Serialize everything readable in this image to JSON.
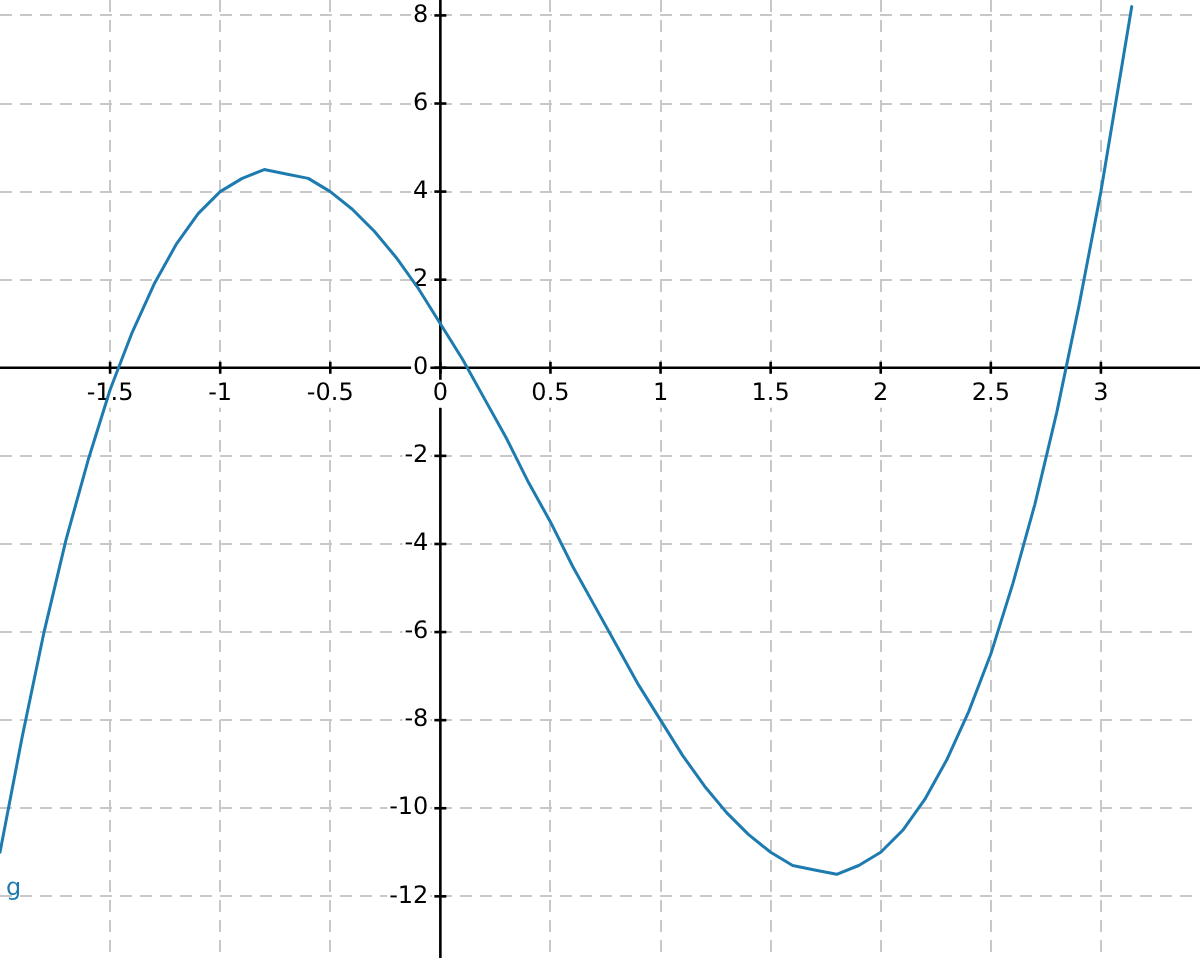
{
  "chart_data": {
    "type": "line",
    "x": [
      -2,
      -1.9,
      -1.8,
      -1.7,
      -1.6,
      -1.5,
      -1.4,
      -1.3,
      -1.2,
      -1.1,
      -1,
      -0.9,
      -0.8,
      -0.7,
      -0.6,
      -0.5,
      -0.4,
      -0.3,
      -0.2,
      -0.1,
      0,
      0.1,
      0.2,
      0.3,
      0.4,
      0.5,
      0.6,
      0.7,
      0.8,
      0.9,
      1,
      1.1,
      1.2,
      1.3,
      1.4,
      1.5,
      1.6,
      1.7,
      1.8,
      1.9,
      2,
      2.1,
      2.2,
      2.3,
      2.4,
      2.5,
      2.6,
      2.7,
      2.8,
      2.9,
      3,
      3.1,
      3.14
    ],
    "series": [
      {
        "name": "g",
        "color": "#1e7bb0",
        "values": [
          -11.0,
          -8.4,
          -6.0,
          -3.9,
          -2.1,
          -0.5,
          0.8,
          1.9,
          2.8,
          3.5,
          4.0,
          4.3,
          4.5,
          4.4,
          4.3,
          4.0,
          3.6,
          3.1,
          2.5,
          1.8,
          1.0,
          0.2,
          -0.7,
          -1.6,
          -2.6,
          -3.5,
          -4.5,
          -5.4,
          -6.3,
          -7.2,
          -8.0,
          -8.8,
          -9.5,
          -10.1,
          -10.6,
          -11.0,
          -11.3,
          -11.4,
          -11.5,
          -11.3,
          -11.0,
          -10.5,
          -9.8,
          -8.9,
          -7.8,
          -6.5,
          -4.9,
          -3.1,
          -1.0,
          1.4,
          4.0,
          7.0,
          8.2
        ]
      }
    ],
    "xlim": [
      -2,
      3.45
    ],
    "ylim": [
      -13.4,
      8.35
    ],
    "xticks": [
      -1.5,
      -1,
      -0.5,
      0,
      0.5,
      1,
      1.5,
      2,
      2.5,
      3
    ],
    "yticks": [
      -12,
      -10,
      -8,
      -6,
      -4,
      -2,
      0,
      2,
      4,
      6,
      8
    ],
    "grid": true,
    "legend": false,
    "marker": "none",
    "line_style": "solid"
  }
}
